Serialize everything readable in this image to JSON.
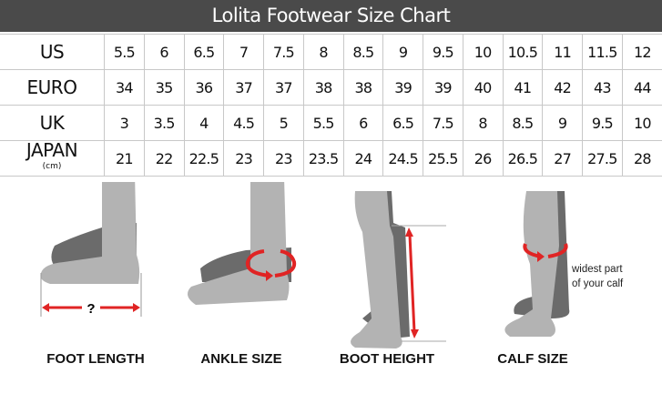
{
  "title": "Lolita Footwear Size Chart",
  "table": {
    "rows": [
      {
        "label": "US",
        "sub": "",
        "values": [
          "5.5",
          "6",
          "6.5",
          "7",
          "7.5",
          "8",
          "8.5",
          "9",
          "9.5",
          "10",
          "10.5",
          "11",
          "11.5",
          "12"
        ]
      },
      {
        "label": "EURO",
        "sub": "",
        "values": [
          "34",
          "35",
          "36",
          "37",
          "37",
          "38",
          "38",
          "39",
          "39",
          "40",
          "41",
          "42",
          "43",
          "44"
        ]
      },
      {
        "label": "UK",
        "sub": "",
        "values": [
          "3",
          "3.5",
          "4",
          "4.5",
          "5",
          "5.5",
          "6",
          "6.5",
          "7.5",
          "8",
          "8.5",
          "9",
          "9.5",
          "10"
        ]
      },
      {
        "label": "JAPAN",
        "sub": "(cm)",
        "values": [
          "21",
          "22",
          "22.5",
          "23",
          "23",
          "23.5",
          "24",
          "24.5",
          "25.5",
          "26",
          "26.5",
          "27",
          "27.5",
          "28"
        ]
      }
    ]
  },
  "guide": {
    "foot_length": "FOOT LENGTH",
    "foot_length_mark": "?",
    "ankle_size": "ANKLE SIZE",
    "boot_height": "BOOT HEIGHT",
    "calf_size": "CALF SIZE",
    "calf_note_1": "widest part",
    "calf_note_2": "of your calf"
  },
  "colors": {
    "header": "#4a4a4a",
    "arrow": "#e02424",
    "leg_light": "#b3b3b3",
    "leg_dark": "#6b6b6b"
  }
}
